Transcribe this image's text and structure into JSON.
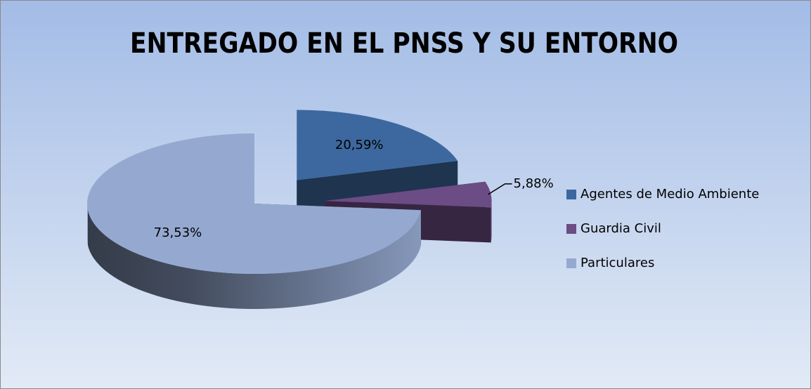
{
  "chart_data": {
    "type": "pie",
    "title": "ENTREGADO EN EL PNSS Y SU ENTORNO",
    "categories": [
      "Agentes de Medio Ambiente",
      "Guardia Civil",
      "Particulares"
    ],
    "values": [
      20.59,
      5.88,
      73.53
    ],
    "value_labels": [
      "20,59%",
      "5,88%",
      "73,53%"
    ],
    "colors": [
      "#3d689f",
      "#6c4c85",
      "#95a9d0"
    ],
    "legend": "right"
  }
}
